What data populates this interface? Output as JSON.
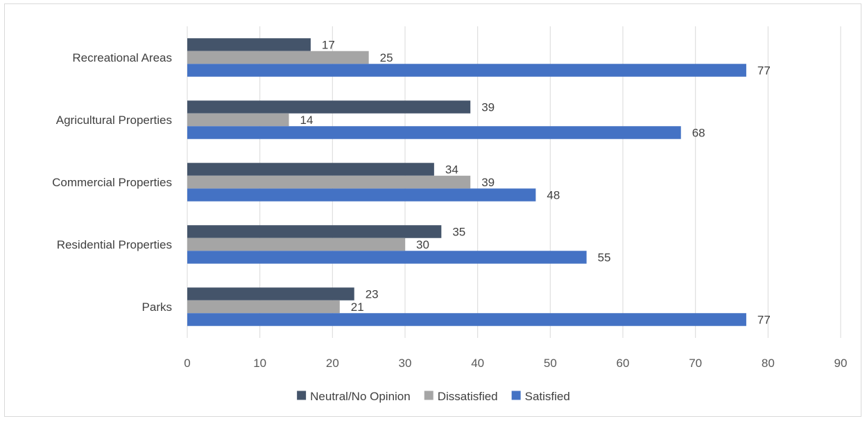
{
  "chart_data": {
    "type": "bar",
    "orientation": "horizontal",
    "categories": [
      "Recreational Areas",
      "Agricultural Properties",
      "Commercial Properties",
      "Residential Properties",
      "Parks"
    ],
    "series": [
      {
        "name": "Neutral/No Opinion",
        "color": "#44546a",
        "values": [
          17,
          39,
          34,
          35,
          23
        ]
      },
      {
        "name": "Dissatisfied",
        "color": "#a5a5a5",
        "values": [
          25,
          14,
          39,
          30,
          21
        ]
      },
      {
        "name": "Satisfied",
        "color": "#4472c4",
        "values": [
          77,
          68,
          48,
          55,
          77
        ]
      }
    ],
    "xlim": [
      0,
      90
    ],
    "xticks": [
      0,
      10,
      20,
      30,
      40,
      50,
      60,
      70,
      80,
      90
    ],
    "grid": true,
    "data_labels": true,
    "legend_position": "bottom"
  }
}
